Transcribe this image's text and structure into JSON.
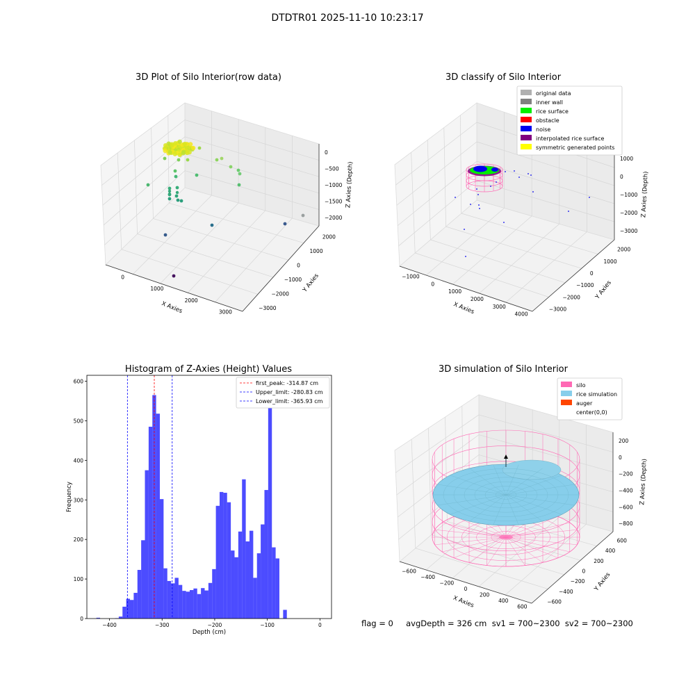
{
  "figure": {
    "suptitle": "DTDTR01 2025-11-10 10:23:17",
    "status_line": "flag = 0     avgDepth = 326 cm  sv1 = 700~2300  sv2 = 700~2300"
  },
  "chart_data": [
    {
      "type": "scatter",
      "title": "3D Plot of Silo Interior(row data)",
      "xlabel": "X Axies",
      "ylabel": "Y Axies",
      "zlabel": "Z Axies (Depth)",
      "x_ticks": [
        "0",
        "1000",
        "2000",
        "3000"
      ],
      "y_ticks": [
        "−3000",
        "−2000",
        "−1000",
        "0",
        "1000",
        "2000"
      ],
      "z_ticks": [
        "−2000",
        "−1500",
        "−1000",
        "−500",
        "0"
      ],
      "colormap": "viridis"
    },
    {
      "type": "scatter",
      "title": "3D classify of Silo Interior",
      "xlabel": "X Axies",
      "ylabel": "Y Axies",
      "zlabel": "Z Axies (Depth)",
      "x_ticks": [
        "−1000",
        "0",
        "1000",
        "2000",
        "3000",
        "4000"
      ],
      "y_ticks": [
        "−3000",
        "−2000",
        "−1000",
        "0",
        "1000",
        "2000"
      ],
      "z_ticks": [
        "−3000",
        "−2000",
        "−1000",
        "0",
        "1000"
      ],
      "legend_position": "top-right",
      "legend": [
        {
          "label": "original data",
          "color": "#b0b0b0"
        },
        {
          "label": "inner wall",
          "color": "#808080"
        },
        {
          "label": "rice surface",
          "color": "#00ee00"
        },
        {
          "label": "obstacle",
          "color": "#ff0000"
        },
        {
          "label": "noise",
          "color": "#0000ee"
        },
        {
          "label": "interpolated rice surface",
          "color": "#800080"
        },
        {
          "label": "symmetric generated points",
          "color": "#ffff00"
        }
      ]
    },
    {
      "type": "bar",
      "title": "Histogram of Z-Axies (Height) Values",
      "xlabel": "Depth (cm)",
      "ylabel": "Frequency",
      "xlim": [
        -443,
        22
      ],
      "ylim": [
        0,
        615
      ],
      "x_ticks": [
        -400,
        -300,
        -200,
        -100,
        0
      ],
      "x_tick_labels": [
        "−400",
        "−300",
        "−200",
        "−100",
        "0"
      ],
      "y_ticks": [
        0,
        100,
        200,
        300,
        400,
        500,
        600
      ],
      "bar_color": "#0000ff",
      "bin_start": -425,
      "bin_width": 7.1,
      "values": [
        2,
        0,
        0,
        0,
        0,
        1,
        5,
        30,
        50,
        47,
        65,
        123,
        198,
        375,
        485,
        565,
        518,
        302,
        127,
        95,
        89,
        103,
        85,
        70,
        68,
        72,
        76,
        62,
        77,
        71,
        90,
        125,
        285,
        320,
        318,
        294,
        172,
        155,
        220,
        352,
        195,
        222,
        103,
        165,
        238,
        325,
        595,
        180,
        152,
        0,
        22
      ],
      "lines": [
        {
          "label": "first_peak: -314.87 cm",
          "x": -314.87,
          "color": "#ff0000"
        },
        {
          "label": "Upper_limit: -280.83 cm",
          "x": -280.83,
          "color": "#0000ff"
        },
        {
          "label": "Lower_limit: -365.93 cm",
          "x": -365.93,
          "color": "#0000ff"
        }
      ],
      "legend_position": "top-right"
    },
    {
      "type": "scatter",
      "title": "3D simulation of Silo Interior",
      "xlabel": "X Axies",
      "ylabel": "Y Axies",
      "zlabel": "Z Axies (Depth)",
      "x_ticks": [
        "−600",
        "−400",
        "−200",
        "0",
        "200",
        "400",
        "600"
      ],
      "y_ticks": [
        "−600",
        "−400",
        "−200",
        "0",
        "200",
        "400",
        "600"
      ],
      "z_ticks": [
        "−800",
        "−600",
        "−400",
        "−200",
        "0",
        "200"
      ],
      "legend_position": "top-right",
      "legend": [
        {
          "label": "silo",
          "color": "#ff69b4"
        },
        {
          "label": "rice simulation",
          "color": "#87ceeb"
        },
        {
          "label": "auger",
          "color": "#ff4500"
        },
        {
          "label": "center(0,0)",
          "color": "#ffffff"
        }
      ]
    }
  ]
}
